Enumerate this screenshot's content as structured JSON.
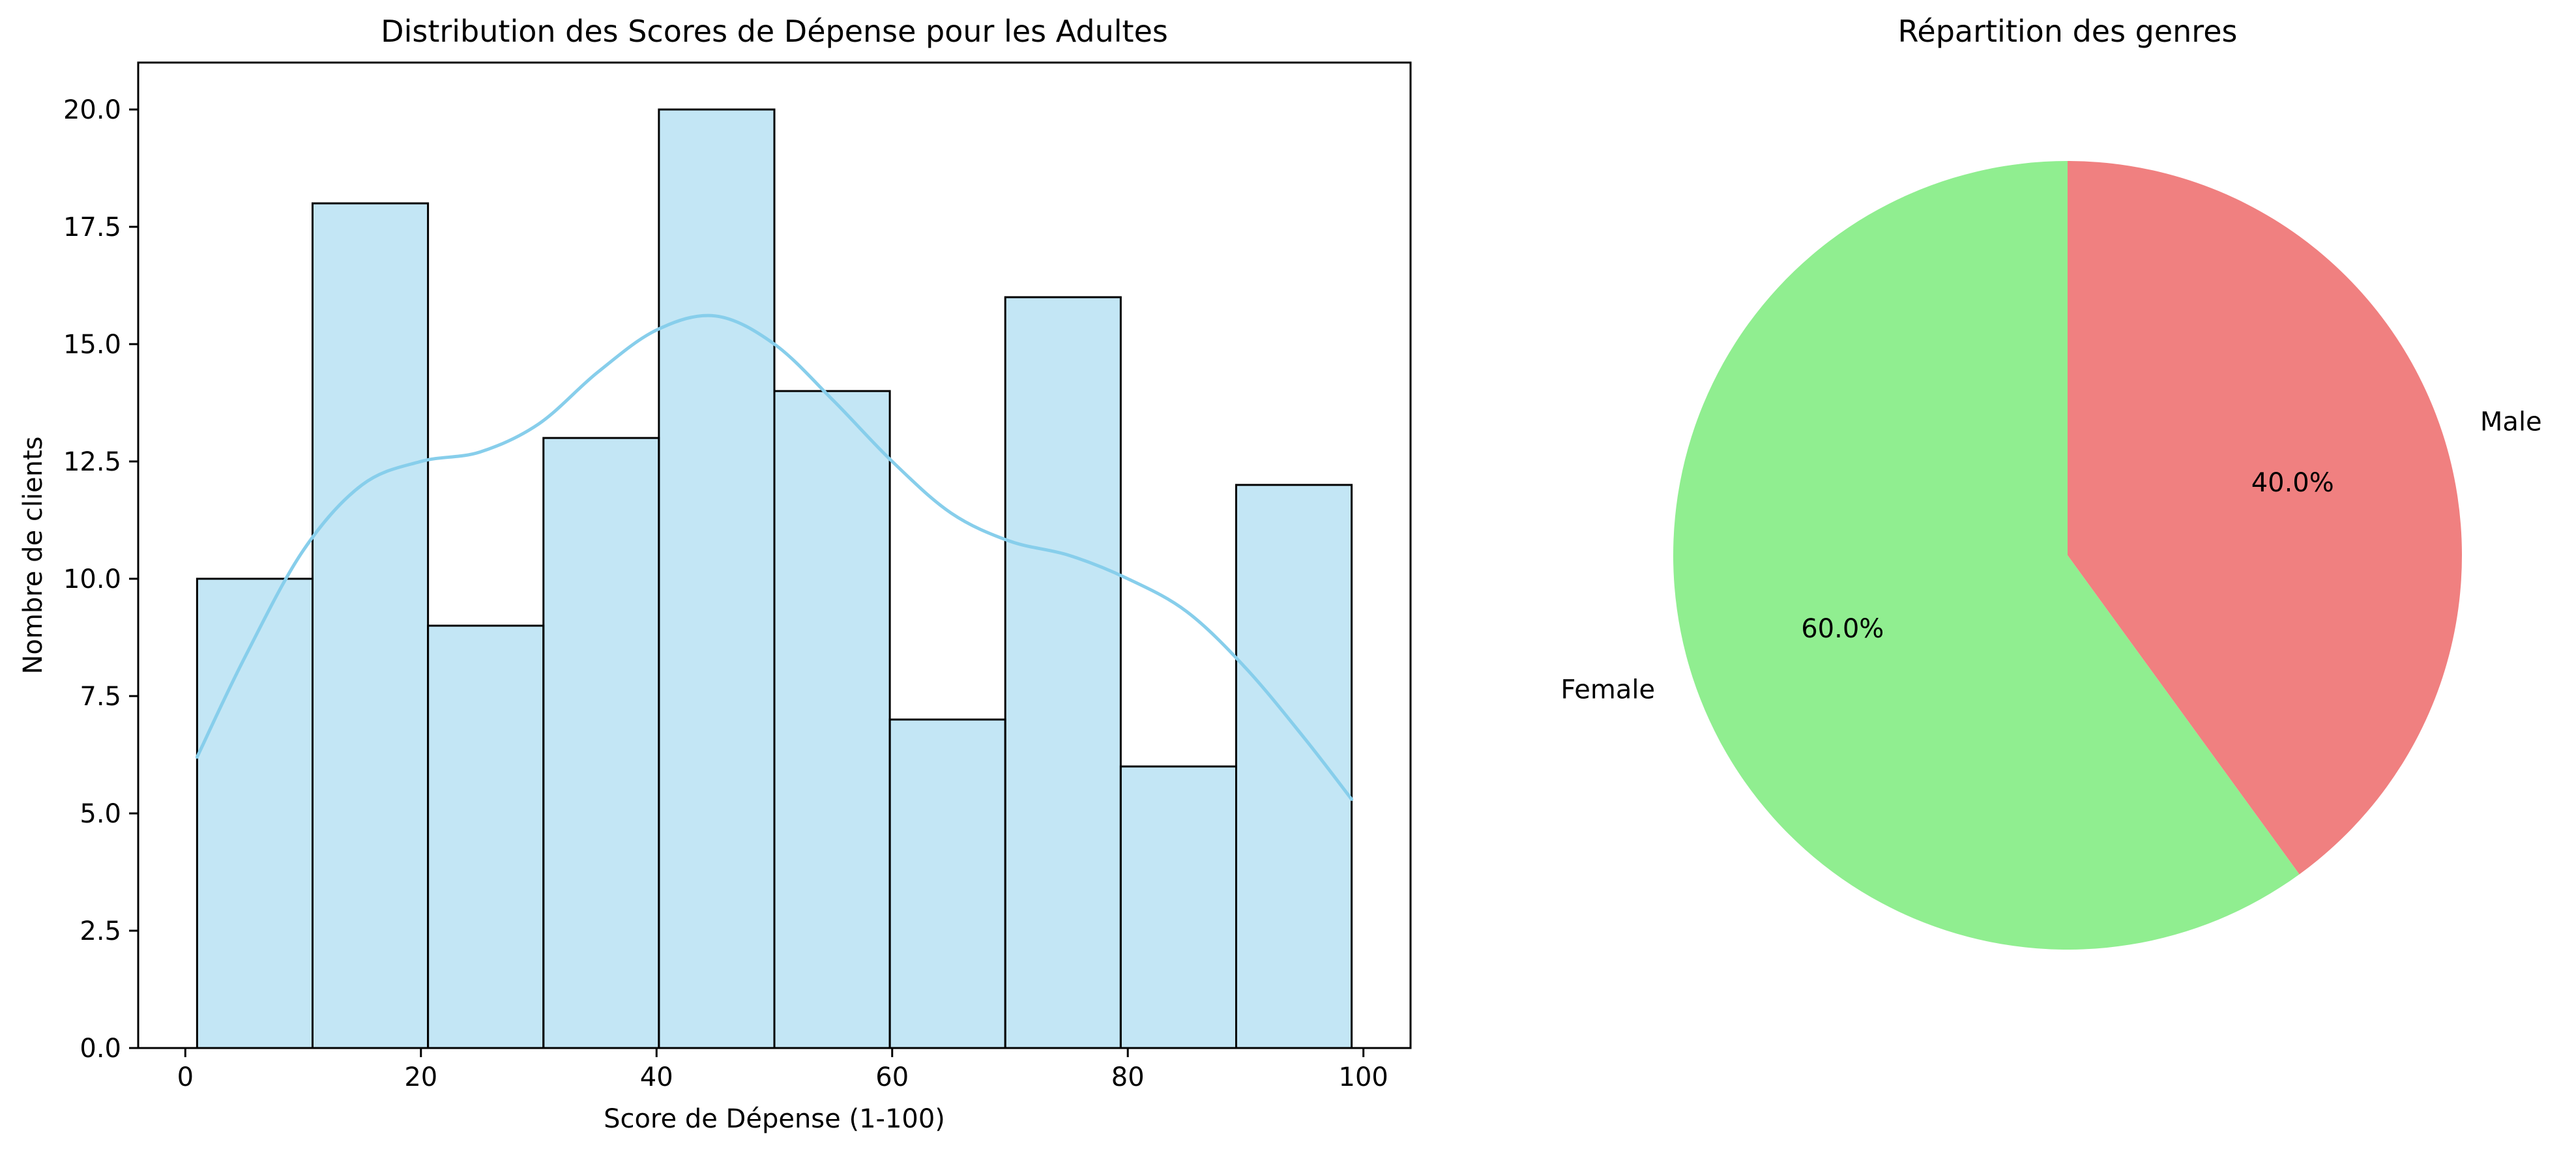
{
  "chart_data": [
    {
      "type": "bar",
      "title": "Distribution des Scores de Dépense pour les Adultes",
      "xlabel": "Score de Dépense (1-100)",
      "ylabel": "Nombre de clients",
      "bin_edges": [
        1,
        10.8,
        20.6,
        30.4,
        40.2,
        50,
        59.8,
        69.6,
        79.4,
        89.2,
        99
      ],
      "values": [
        10,
        18,
        9,
        13,
        20,
        14,
        7,
        16,
        6,
        12
      ],
      "xlim": [
        -4,
        104
      ],
      "ylim": [
        0,
        21
      ],
      "x_ticks": [
        "0",
        "20",
        "40",
        "60",
        "80",
        "100"
      ],
      "y_ticks": [
        "0.0",
        "2.5",
        "5.0",
        "7.5",
        "10.0",
        "12.5",
        "15.0",
        "17.5",
        "20.0"
      ],
      "kde": {
        "x": [
          1,
          5,
          10,
          15,
          20,
          25,
          30,
          35,
          40,
          45,
          50,
          55,
          60,
          65,
          70,
          75,
          80,
          85,
          90,
          95,
          99
        ],
        "y": [
          6.2,
          8.3,
          10.6,
          12.0,
          12.5,
          12.7,
          13.3,
          14.4,
          15.3,
          15.6,
          15.0,
          13.8,
          12.5,
          11.4,
          10.8,
          10.5,
          10.0,
          9.3,
          8.1,
          6.6,
          5.3
        ]
      },
      "grid": false,
      "colors": {
        "bar_fill": "#87ceeb",
        "bar_edge": "#000000",
        "kde_line": "#87ceeb"
      }
    },
    {
      "type": "pie",
      "title": "Répartition des genres",
      "labels": [
        "Male",
        "Female"
      ],
      "values": [
        40.0,
        60.0
      ],
      "pct_labels": [
        "40.0%",
        "60.0%"
      ],
      "start_angle": 90,
      "direction": "clockwise",
      "colors": [
        "#f08080",
        "#90ee90"
      ]
    }
  ]
}
